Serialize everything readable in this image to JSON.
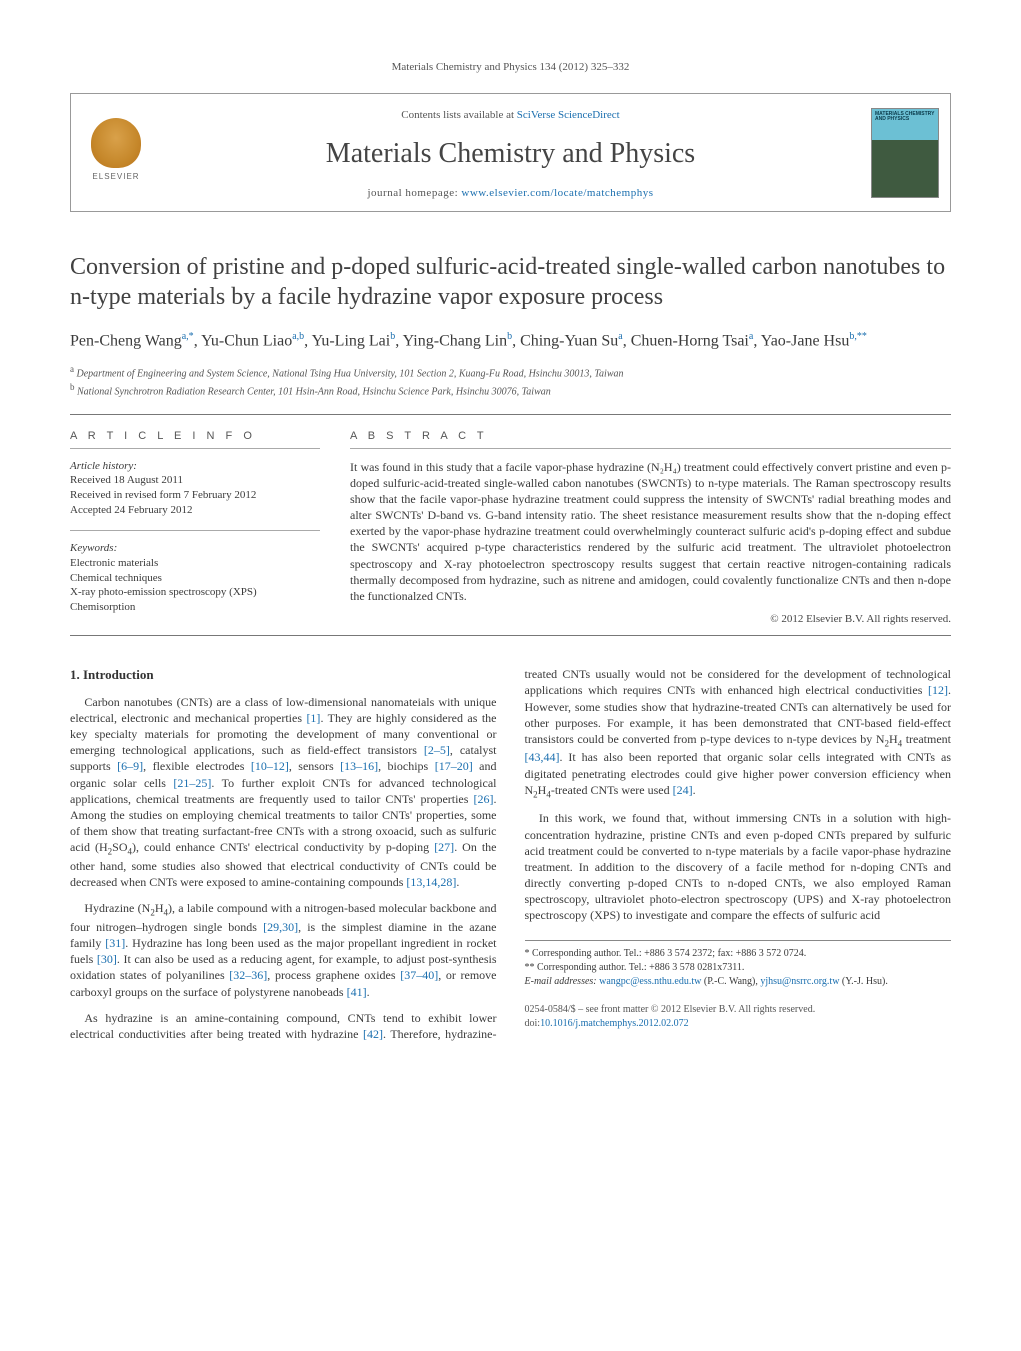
{
  "page_citation": "Materials Chemistry and Physics 134 (2012) 325–332",
  "masthead": {
    "contents_line_prefix": "Contents lists available at ",
    "contents_link_text": "SciVerse ScienceDirect",
    "journal_name": "Materials Chemistry and Physics",
    "homepage_prefix": "journal homepage: ",
    "homepage_url_text": "www.elsevier.com/locate/matchemphys",
    "publisher_logo_text": "ELSEVIER",
    "cover_title": "MATERIALS CHEMISTRY AND PHYSICS"
  },
  "article": {
    "title": "Conversion of pristine and p-doped sulfuric-acid-treated single-walled carbon nanotubes to n-type materials by a facile hydrazine vapor exposure process",
    "authors_html": "Pen-Cheng Wang<sup>a,*</sup>, Yu-Chun Liao<sup>a,b</sup>, Yu-Ling Lai<sup>b</sup>, Ying-Chang Lin<sup>b</sup>, Ching-Yuan Su<sup>a</sup>, Chuen-Horng Tsai<sup>a</sup>, Yao-Jane Hsu<sup>b,**</sup>",
    "affiliations": [
      {
        "sup": "a",
        "text": "Department of Engineering and System Science, National Tsing Hua University, 101 Section 2, Kuang-Fu Road, Hsinchu 30013, Taiwan"
      },
      {
        "sup": "b",
        "text": "National Synchrotron Radiation Research Center, 101 Hsin-Ann Road, Hsinchu Science Park, Hsinchu 30076, Taiwan"
      }
    ]
  },
  "article_info": {
    "heading": "A R T I C L E   I N F O",
    "history_label": "Article history:",
    "received": "Received 18 August 2011",
    "revised": "Received in revised form 7 February 2012",
    "accepted": "Accepted 24 February 2012",
    "keywords_label": "Keywords:",
    "keywords": [
      "Electronic materials",
      "Chemical techniques",
      "X-ray photo-emission spectroscopy (XPS)",
      "Chemisorption"
    ]
  },
  "abstract": {
    "heading": "A B S T R A C T",
    "text": "It was found in this study that a facile vapor-phase hydrazine (N₂H₄) treatment could effectively convert pristine and even p-doped sulfuric-acid-treated single-walled cabon nanotubes (SWCNTs) to n-type materials. The Raman spectroscopy results show that the facile vapor-phase hydrazine treatment could suppress the intensity of SWCNTs' radial breathing modes and alter SWCNTs' D-band vs. G-band intensity ratio. The sheet resistance measurement results show that the n-doping effect exerted by the vapor-phase hydrazine treatment could overwhelmingly counteract sulfuric acid's p-doping effect and subdue the SWCNTs' acquired p-type characteristics rendered by the sulfuric acid treatment. The ultraviolet photoelectron spectroscopy and X-ray photoelectron spectroscopy results suggest that certain reactive nitrogen-containing radicals thermally decomposed from hydrazine, such as nitrene and amidogen, could covalently functionalize CNTs and then n-dope the functionalzed CNTs.",
    "copyright": "© 2012 Elsevier B.V. All rights reserved."
  },
  "body": {
    "section_heading": "1. Introduction",
    "paragraphs": [
      "Carbon nanotubes (CNTs) are a class of low-dimensional nanomateials with unique electrical, electronic and mechanical properties [1]. They are highly considered as the key specialty materials for promoting the development of many conventional or emerging technological applications, such as field-effect transistors [2–5], catalyst supports [6–9], flexible electrodes [10–12], sensors [13–16], biochips [17–20] and organic solar cells [21–25]. To further exploit CNTs for advanced technological applications, chemical treatments are frequently used to tailor CNTs' properties [26]. Among the studies on employing chemical treatments to tailor CNTs' properties, some of them show that treating surfactant-free CNTs with a strong oxoacid, such as sulfuric acid (H₂SO₄), could enhance CNTs' electrical conductivity by p-doping [27]. On the other hand, some studies also showed that electrical conductivity of CNTs could be decreased when CNTs were exposed to amine-containing compounds [13,14,28].",
      "Hydrazine (N₂H₄), a labile compound with a nitrogen-based molecular backbone and four nitrogen–hydrogen single bonds [29,30], is the simplest diamine in the azane family [31]. Hydrazine has long been used as the major propellant ingredient in rocket fuels [30]. It can also be used as a reducing agent, for example, to adjust post-synthesis oxidation states of polyanilines [32–36], process graphene oxides [37–40], or remove carboxyl groups on the surface of polystyrene nanobeads [41].",
      "As hydrazine is an amine-containing compound, CNTs tend to exhibit lower electrical conductivities after being treated with hydrazine [42]. Therefore, hydrazine-treated CNTs usually would not be considered for the development of technological applications which requires CNTs with enhanced high electrical conductivities [12]. However, some studies show that hydrazine-treated CNTs can alternatively be used for other purposes. For example, it has been demonstrated that CNT-based field-effect transistors could be converted from p-type devices to n-type devices by N₂H₄ treatment [43,44]. It has also been reported that organic solar cells integrated with CNTs as digitated penetrating electrodes could give higher power conversion efficiency when N₂H₄-treated CNTs were used [24].",
      "In this work, we found that, without immersing CNTs in a solution with high-concentration hydrazine, pristine CNTs and even p-doped CNTs prepared by sulfuric acid treatment could be converted to n-type materials by a facile vapor-phase hydrazine treatment. In addition to the discovery of a facile method for n-doping CNTs and directly converting p-doped CNTs to n-doped CNTs, we also employed Raman spectroscopy, ultraviolet photo-electron spectroscopy (UPS) and X-ray photoelectron spectroscopy (XPS) to investigate and compare the effects of sulfuric acid"
    ],
    "citation_refs": [
      "[1]",
      "[2–5]",
      "[6–9]",
      "[10–12]",
      "[13–16]",
      "[17–20]",
      "[21–25]",
      "[26]",
      "[27]",
      "[13,14,28]",
      "[29,30]",
      "[31]",
      "[30]",
      "[32–36]",
      "[37–40]",
      "[41]",
      "[42]",
      "[12]",
      "[43,44]",
      "[24]"
    ]
  },
  "footnotes": {
    "corr1": "* Corresponding author. Tel.: +886 3 574 2372; fax: +886 3 572 0724.",
    "corr2": "** Corresponding author. Tel.: +886 3 578 0281x7311.",
    "email_label": "E-mail addresses:",
    "email1": "wangpc@ess.nthu.edu.tw",
    "email1_name": "(P.-C. Wang),",
    "email2": "yjhsu@nsrrc.org.tw",
    "email2_name": "(Y.-J. Hsu)."
  },
  "footer": {
    "line1": "0254-0584/$ – see front matter © 2012 Elsevier B.V. All rights reserved.",
    "doi_prefix": "doi:",
    "doi": "10.1016/j.matchemphys.2012.02.072"
  },
  "colors": {
    "link": "#1b6faf",
    "text": "#3a3a3a",
    "rule": "#777777",
    "elsevier_orange": "#c6882b"
  }
}
